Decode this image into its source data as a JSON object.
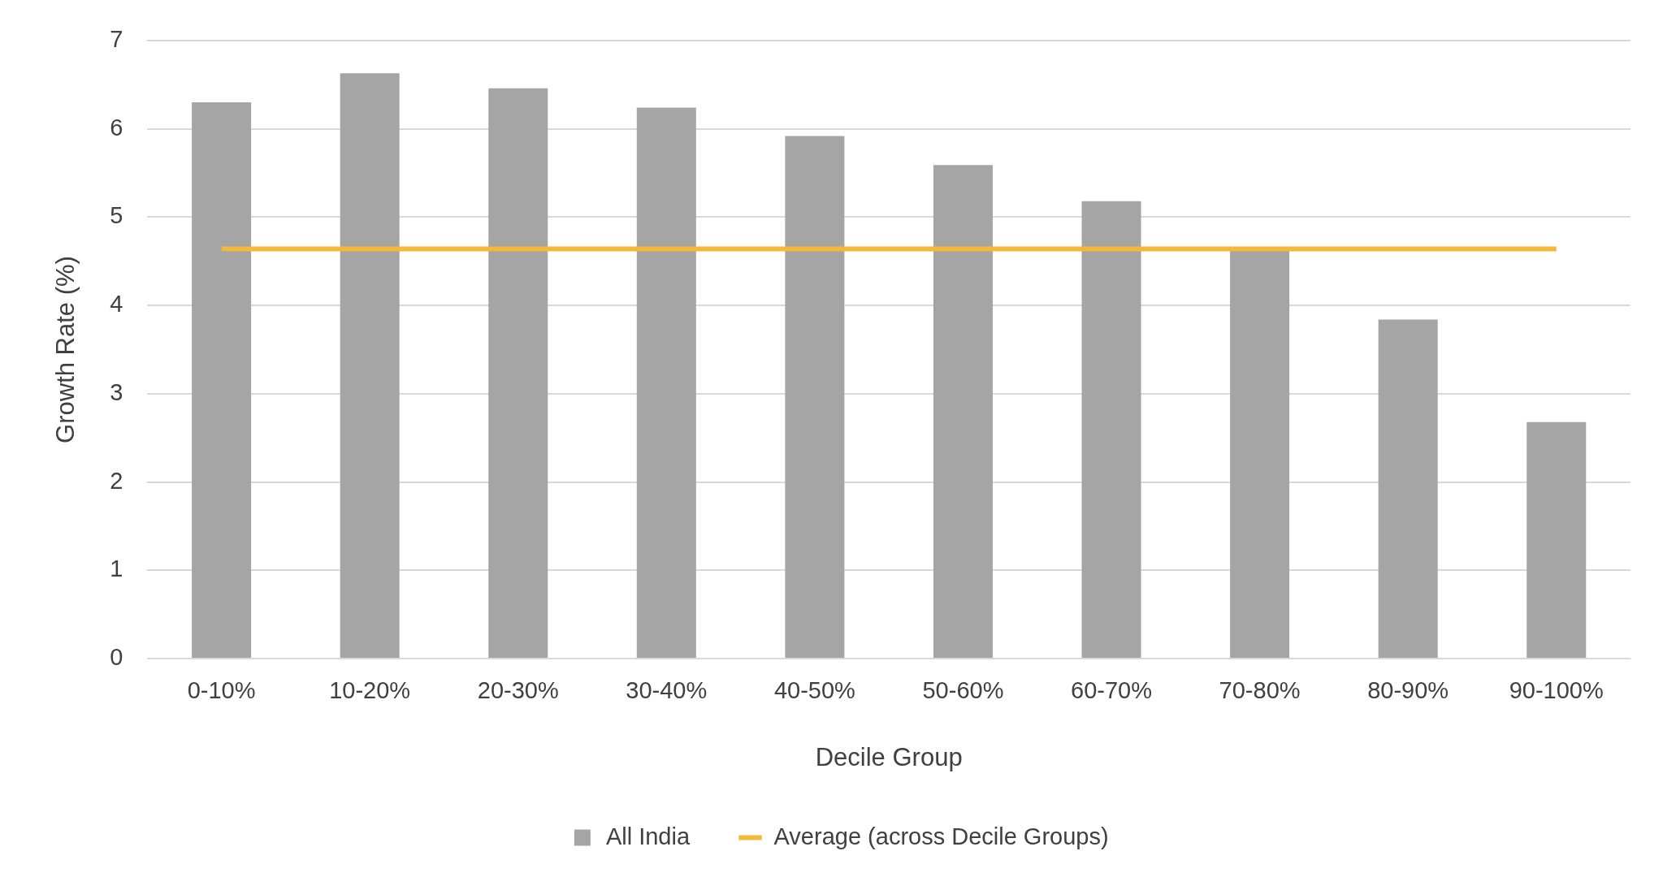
{
  "chart_data": {
    "type": "bar",
    "xlabel": "Decile Group",
    "ylabel": "Growth Rate (%)",
    "categories": [
      "0-10%",
      "10-20%",
      "20-30%",
      "30-40%",
      "40-50%",
      "50-60%",
      "60-70%",
      "70-80%",
      "80-90%",
      "90-100%"
    ],
    "series": [
      {
        "name": "All India",
        "color": "#a5a5a5",
        "values": [
          6.3,
          6.63,
          6.46,
          6.24,
          5.92,
          5.59,
          5.18,
          4.62,
          3.84,
          2.68
        ]
      },
      {
        "name": "Average (across Decile Groups)",
        "type": "line",
        "color": "#f4b93a",
        "values": [
          4.64,
          4.64,
          4.64,
          4.64,
          4.64,
          4.64,
          4.64,
          4.64,
          4.64,
          4.64
        ]
      }
    ],
    "ylim": [
      0,
      7
    ],
    "yticks": [
      0,
      1,
      2,
      3,
      4,
      5,
      6,
      7
    ],
    "grid": "y",
    "legend": "bottom"
  }
}
